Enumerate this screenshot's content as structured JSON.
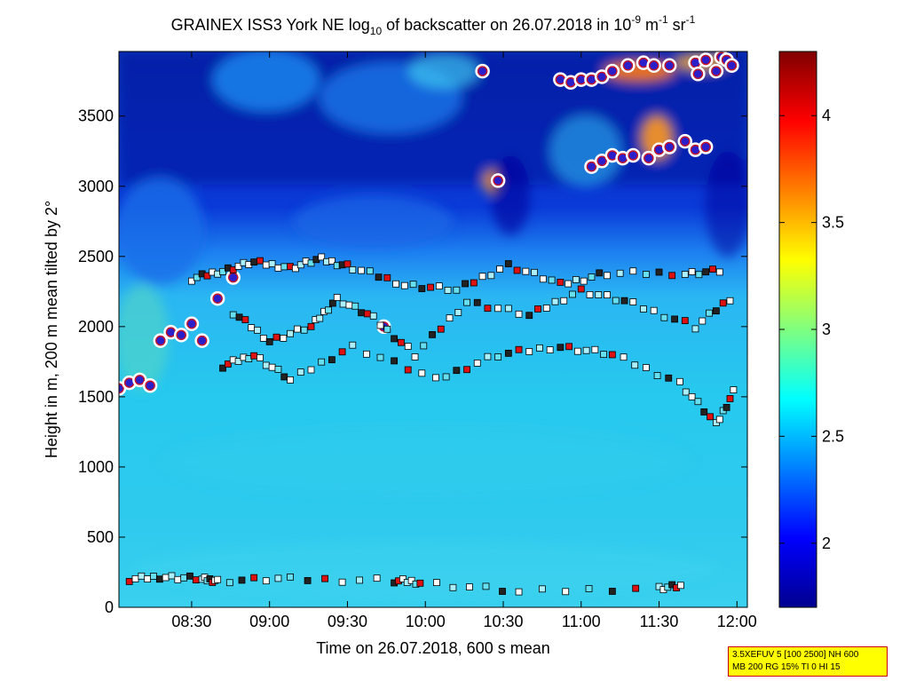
{
  "chart_data": {
    "type": "heatmap",
    "title": {
      "prefix": "GRAINEX ISS3 York NE log",
      "sub": "10",
      "middle": " of backscatter on 26.07.2018 in 10",
      "sup1": "-9",
      "unit1": " m",
      "sup2": "-1",
      "unit2": " sr",
      "sup3": "-1"
    },
    "xlabel": "Time on 26.07.2018, 600 s mean",
    "ylabel": "Height in m, 200 m mean tilted by 2°",
    "x_ticks": [
      "08:30",
      "09:00",
      "09:30",
      "10:00",
      "10:30",
      "11:00",
      "11:30",
      "12:00"
    ],
    "x_tick_minutes": [
      510,
      540,
      570,
      600,
      630,
      660,
      690,
      720
    ],
    "xlim_minutes": [
      482,
      724
    ],
    "y_ticks": [
      0,
      500,
      1000,
      1500,
      2000,
      2500,
      3000,
      3500
    ],
    "ylim": [
      0,
      3960
    ],
    "colorbar": {
      "ticks": [
        2,
        2.5,
        3,
        3.5,
        4
      ],
      "labels": [
        "2",
        "2.5",
        "3",
        "3.5",
        "4"
      ],
      "range": [
        1.7,
        4.3
      ],
      "colormap": "jet"
    },
    "cloud_tracks": [
      {
        "name": "upper-cloud-segment",
        "points": [
          [
            622,
            3820
          ],
          [
            652,
            3760
          ],
          [
            656,
            3740
          ],
          [
            660,
            3760
          ],
          [
            664,
            3760
          ],
          [
            668,
            3780
          ],
          [
            672,
            3820
          ],
          [
            678,
            3860
          ],
          [
            684,
            3880
          ],
          [
            688,
            3860
          ],
          [
            694,
            3860
          ],
          [
            704,
            3880
          ],
          [
            708,
            3900
          ],
          [
            714,
            3920
          ],
          [
            716,
            3900
          ],
          [
            718,
            3860
          ],
          [
            705,
            3800
          ],
          [
            712,
            3820
          ]
        ]
      },
      {
        "name": "mid-cloud-segment",
        "points": [
          [
            628,
            3040
          ],
          [
            664,
            3140
          ],
          [
            668,
            3180
          ],
          [
            672,
            3220
          ],
          [
            676,
            3200
          ],
          [
            680,
            3220
          ],
          [
            686,
            3200
          ],
          [
            690,
            3260
          ],
          [
            694,
            3280
          ],
          [
            700,
            3320
          ],
          [
            704,
            3260
          ],
          [
            708,
            3280
          ]
        ]
      },
      {
        "name": "boundary-layer-top",
        "points": [
          [
            482,
            1560
          ],
          [
            486,
            1600
          ],
          [
            490,
            1620
          ],
          [
            494,
            1580
          ],
          [
            498,
            1900
          ],
          [
            502,
            1960
          ],
          [
            506,
            1940
          ],
          [
            510,
            2020
          ],
          [
            514,
            1900
          ],
          [
            520,
            2200
          ],
          [
            526,
            2350
          ],
          [
            584,
            2000
          ]
        ]
      }
    ],
    "aerosol_layer_tops": [
      {
        "name": "layer-2400",
        "points": [
          [
            510,
            2340
          ],
          [
            522,
            2400
          ],
          [
            534,
            2460
          ],
          [
            548,
            2420
          ],
          [
            560,
            2480
          ],
          [
            572,
            2420
          ],
          [
            592,
            2300
          ],
          [
            612,
            2260
          ],
          [
            632,
            2440
          ],
          [
            652,
            2300
          ],
          [
            670,
            2380
          ],
          [
            700,
            2380
          ],
          [
            716,
            2400
          ]
        ]
      },
      {
        "name": "layer-2100",
        "points": [
          [
            526,
            2100
          ],
          [
            540,
            1900
          ],
          [
            556,
            2000
          ],
          [
            566,
            2200
          ],
          [
            580,
            2060
          ],
          [
            596,
            1800
          ],
          [
            616,
            2180
          ],
          [
            640,
            2080
          ],
          [
            660,
            2260
          ],
          [
            680,
            2160
          ],
          [
            704,
            2000
          ],
          [
            720,
            2240
          ]
        ]
      },
      {
        "name": "layer-1700",
        "points": [
          [
            522,
            1720
          ],
          [
            534,
            1800
          ],
          [
            548,
            1620
          ],
          [
            572,
            1860
          ],
          [
            604,
            1620
          ],
          [
            628,
            1800
          ],
          [
            652,
            1860
          ],
          [
            672,
            1800
          ],
          [
            698,
            1600
          ],
          [
            712,
            1300
          ],
          [
            720,
            1580
          ]
        ]
      },
      {
        "name": "low-layer-200",
        "points": [
          [
            486,
            200
          ],
          [
            500,
            220
          ],
          [
            514,
            200
          ],
          [
            520,
            190
          ],
          [
            548,
            200
          ],
          [
            588,
            190
          ],
          [
            598,
            180
          ],
          [
            636,
            110
          ],
          [
            690,
            140
          ],
          [
            700,
            150
          ]
        ]
      }
    ]
  },
  "info_box": {
    "line1": "3.5XEFUV 5 [100 2500] NH 600",
    "line2": "MB 200 RG 15% TI 0 HI 15"
  }
}
